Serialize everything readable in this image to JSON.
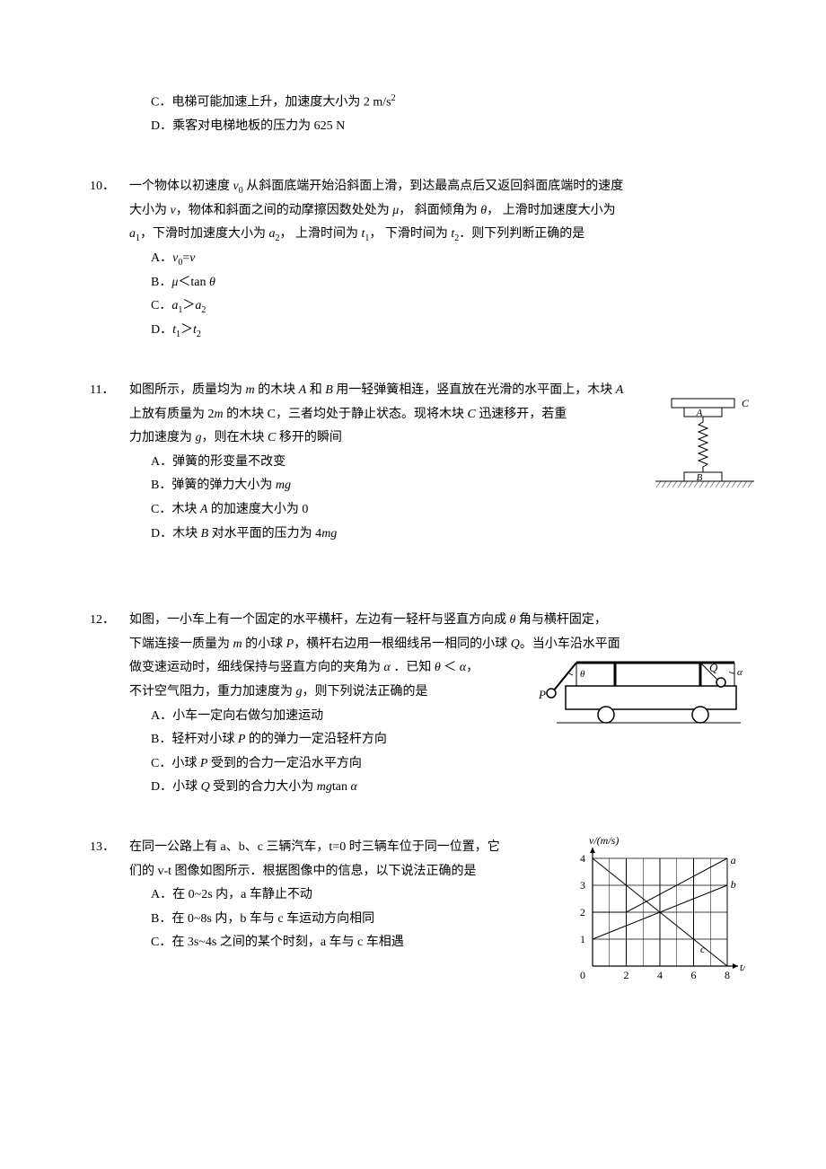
{
  "q9": {
    "options": {
      "C": {
        "letter": "C．",
        "text_pre": "电梯可能加速上升，加速度大小为  2 m/s",
        "sup": "2"
      },
      "D": {
        "letter": "D．",
        "text": "乘客对电梯地板的压力为 625  N"
      }
    }
  },
  "q10": {
    "num": "10．",
    "stem_l1_a": "一个物体以初速度 ",
    "v0": "v",
    "v0_sub": "0",
    "stem_l1_b": " 从斜面底端开始沿斜面上滑，到达最高点后又返回斜面底端时的速度",
    "stem_l2_a": "大小为 ",
    "v": "v",
    "stem_l2_b": "，物体和斜面之间的动摩擦因数处处为 ",
    "mu": "μ",
    "stem_l2_c": "， 斜面倾角为  ",
    "theta": "θ",
    "stem_l2_d": "， 上滑时加速度大小为",
    "stem_l3_a1": "a",
    "a1_sub": "1",
    "stem_l3_b": "，下滑时加速度大小为 ",
    "a2": "a",
    "a2_sub": "2",
    "stem_l3_c": "， 上滑时间为 ",
    "t1": "t",
    "t1_sub": "1",
    "stem_l3_d": "，  下滑时间为 ",
    "t2": "t",
    "t2_sub": "2",
    "stem_l3_e": "．则下列判断正确的是",
    "optA_letter": "A．",
    "optA_v0": "v",
    "optA_v0sub": "0",
    "optA_eq": "=",
    "optA_v": "v",
    "optB_letter": "B．",
    "optB_mu": "μ",
    "optB_lt": "＜tan ",
    "optB_theta": "θ",
    "optC_letter": "C．",
    "optC_a1": "a",
    "optC_a1s": "1",
    "optC_gt": "＞",
    "optC_a2": "a",
    "optC_a2s": "2",
    "optD_letter": "D．",
    "optD_t1": "t",
    "optD_t1s": "1",
    "optD_gt": "＞",
    "optD_t2": "t",
    "optD_t2s": "2"
  },
  "q11": {
    "num": "11．",
    "l1_a": "如图所示，质量均为 ",
    "m": "m",
    "l1_b": " 的木块 ",
    "A": "A",
    "l1_c": " 和 ",
    "B": "B",
    "l1_d": " 用一轻弹簧相连，竖直放在光滑的水平面上，木块 ",
    "A2": "A",
    "l2_a": "上放有质量为 2",
    "m2": "m",
    "l2_b": " 的木块 C，三者均处于静止状态。现将木块 ",
    "C": "C",
    "l2_c": " 迅速移开，若重",
    "l3_a": "力加速度为 ",
    "g": "g",
    "l3_b": "，则在木块 ",
    "C2": "C",
    "l3_c": " 移开的瞬间",
    "optA_letter": "A．",
    "optA": "弹簧的形变量不改变",
    "optB_letter": "B．",
    "optB_a": "弹簧的弹力大小为 ",
    "optB_mg": "mg",
    "optC_letter": "C．",
    "optC_a": "木块 ",
    "optC_A": "A",
    "optC_b": " 的加速度大小为 0",
    "optD_letter": "D．",
    "optD_a": "木块 ",
    "optD_B": "B",
    "optD_b": " 对水平面的压力为 4",
    "optD_mg": "mg",
    "fig": {
      "labelC": "C",
      "labelA": "A",
      "labelB": "B"
    }
  },
  "q12": {
    "num": "12．",
    "l1_a": "如图，一小车上有一个固定的水平横杆，左边有一轻杆与竖直方向成  ",
    "theta": "θ",
    "l1_b": " 角与横杆固定，",
    "l2_a": "下端连接一质量为 ",
    "m": "m",
    "l2_b": " 的小球 ",
    "P": "P",
    "l2_c": "，横杆右边用一根细线吊一相同的小球 ",
    "Q": "Q",
    "l2_d": "。当小车沿水平面",
    "l3_a": "做变速运动时，细线保持与竖直方向的夹角为 ",
    "alpha": "α",
    "l3_b": " ．已知  ",
    "theta2": "θ",
    "l3_c": " ＜ ",
    "alpha2": "α",
    "l3_d": "，",
    "l4_a": "不计空气阻力，重力加速度为 ",
    "g": "g",
    "l4_b": "，则下列说法正确的是",
    "optA_letter": "A．",
    "optA": "小车一定向右做匀加速运动",
    "optB_letter": "B．",
    "optB_a": "轻杆对小球 ",
    "optB_P": "P",
    "optB_b": " 的的弹力一定沿轻杆方向",
    "optC_letter": "C．",
    "optC_a": "小球 ",
    "optC_P": "P",
    "optC_b": " 受到的合力一定沿水平方向",
    "optD_letter": "D．",
    "optD_a": "小球 ",
    "optD_Q": "Q",
    "optD_b": " 受到的合力大小为 ",
    "optD_mg": "mg",
    "optD_c": "tan ",
    "optD_alpha": "α",
    "fig": {
      "P": "P",
      "Q": "Q",
      "theta": "θ",
      "alpha": "α"
    }
  },
  "q13": {
    "num": "13．",
    "l1": "在同一公路上有 a、b、c 三辆汽车，t=0 时三辆车位于同一位置，它",
    "l2": "们的 v-t 图像如图所示．根据图像中的信息，以下说法正确的是",
    "optA_letter": "A．",
    "optA": "在 0~2s 内，a 车静止不动",
    "optB_letter": "B．",
    "optB": "在 0~8s 内，b 车与 c 车运动方向相同",
    "optC_letter": "C．",
    "optC": "在 3s~4s 之间的某个时刻，a 车与 c 车相遇",
    "chart": {
      "type": "line",
      "xlabel": "t/s",
      "ylabel": "v/(m/s)",
      "xlim": [
        0,
        8
      ],
      "ylim": [
        0,
        4
      ],
      "xticks": [
        0,
        2,
        4,
        6,
        8
      ],
      "yticks": [
        0,
        1,
        2,
        3,
        4
      ],
      "grid_color": "#000000",
      "background_color": "#ffffff",
      "series": {
        "a": {
          "label": "a",
          "points": [
            [
              0,
              2
            ],
            [
              2,
              2
            ],
            [
              8,
              4
            ]
          ],
          "color": "#000000"
        },
        "b": {
          "label": "b",
          "points": [
            [
              0,
              1
            ],
            [
              8,
              3
            ]
          ],
          "color": "#000000"
        },
        "c": {
          "label": "c",
          "points": [
            [
              0,
              4
            ],
            [
              8,
              0
            ]
          ],
          "color": "#000000"
        }
      },
      "line_width": 1,
      "axis_fontsize": 12,
      "label_positions": {
        "a": [
          8.2,
          3.8
        ],
        "b": [
          8.2,
          2.9
        ],
        "c": [
          6.4,
          0.5
        ]
      }
    }
  }
}
